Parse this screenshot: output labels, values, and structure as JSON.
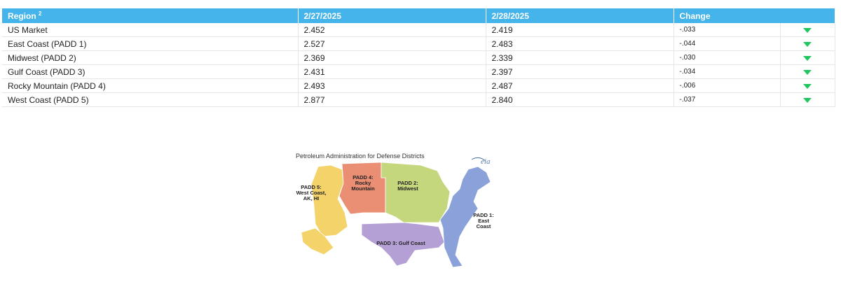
{
  "table": {
    "headers": {
      "region": "Region",
      "region_sup": "2",
      "date1": "2/27/2025",
      "date2": "2/28/2025",
      "change": "Change"
    },
    "rows": [
      {
        "region": "US Market",
        "d1": "2.452",
        "d2": "2.419",
        "change": "-.033",
        "direction": "down"
      },
      {
        "region": "East Coast (PADD 1)",
        "d1": "2.527",
        "d2": "2.483",
        "change": "-.044",
        "direction": "down"
      },
      {
        "region": "Midwest (PADD 2)",
        "d1": "2.369",
        "d2": "2.339",
        "change": "-.030",
        "direction": "down"
      },
      {
        "region": "Gulf Coast (PADD 3)",
        "d1": "2.431",
        "d2": "2.397",
        "change": "-.034",
        "direction": "down"
      },
      {
        "region": "Rocky Mountain (PADD 4)",
        "d1": "2.493",
        "d2": "2.487",
        "change": "-.006",
        "direction": "down"
      },
      {
        "region": "West Coast (PADD 5)",
        "d1": "2.877",
        "d2": "2.840",
        "change": "-.037",
        "direction": "down"
      }
    ],
    "colors": {
      "header": "#45b4ea",
      "arrow_down": "#22c55e"
    }
  },
  "map": {
    "title": "Petroleum Administration for Defense Districts",
    "logo": "eia",
    "padd5": [
      "PADD 5:",
      "West Coast,",
      "AK, HI"
    ],
    "padd4": [
      "PADD 4:",
      "Rocky",
      "Mountain"
    ],
    "padd2": [
      "PADD 2:",
      "Midwest"
    ],
    "padd3": "PADD 3: Gulf Coast",
    "padd1": [
      "PADD 1:",
      "East",
      "Coast"
    ],
    "colors": {
      "padd5": "#f4d36b",
      "padd4": "#ea8f74",
      "padd2": "#c5d77d",
      "padd3": "#b5a0d6",
      "padd1": "#8aa2d9"
    }
  }
}
